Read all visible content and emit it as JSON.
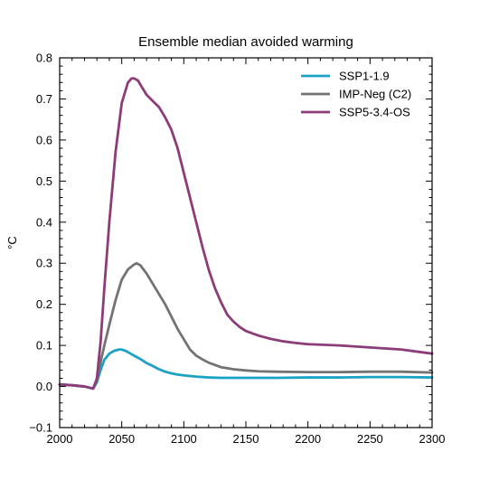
{
  "chart_data": {
    "type": "line",
    "title": "Ensemble median avoided warming",
    "xlabel": "",
    "ylabel": "°C",
    "xlim": [
      2000,
      2300
    ],
    "ylim": [
      -0.1,
      0.8
    ],
    "xticks": [
      "2000",
      "2050",
      "2100",
      "2150",
      "2200",
      "2250",
      "2300"
    ],
    "yticks": [
      "−0.1",
      "0.0",
      "0.1",
      "0.2",
      "0.3",
      "0.4",
      "0.5",
      "0.6",
      "0.7",
      "0.8"
    ],
    "grid": false,
    "legend_position": "top-right",
    "series": [
      {
        "name": "SSP1-1.9",
        "color": "#1ba3c6",
        "x": [
          2000,
          2010,
          2020,
          2027,
          2030,
          2033,
          2036,
          2040,
          2044,
          2048,
          2050,
          2053,
          2056,
          2060,
          2065,
          2070,
          2075,
          2080,
          2085,
          2090,
          2095,
          2100,
          2110,
          2120,
          2130,
          2150,
          2175,
          2200,
          2225,
          2250,
          2275,
          2300
        ],
        "y": [
          0.005,
          0.003,
          0.0,
          -0.005,
          0.01,
          0.04,
          0.065,
          0.08,
          0.087,
          0.09,
          0.09,
          0.087,
          0.082,
          0.075,
          0.067,
          0.057,
          0.05,
          0.042,
          0.036,
          0.032,
          0.029,
          0.027,
          0.024,
          0.022,
          0.021,
          0.021,
          0.021,
          0.022,
          0.022,
          0.023,
          0.023,
          0.022
        ]
      },
      {
        "name": "IMP-Neg (C2)",
        "color": "#737373",
        "x": [
          2000,
          2010,
          2020,
          2027,
          2030,
          2033,
          2036,
          2040,
          2045,
          2050,
          2055,
          2060,
          2062,
          2065,
          2070,
          2075,
          2080,
          2085,
          2090,
          2095,
          2100,
          2105,
          2110,
          2115,
          2120,
          2130,
          2140,
          2150,
          2160,
          2175,
          2200,
          2225,
          2250,
          2275,
          2300
        ],
        "y": [
          0.005,
          0.003,
          0.0,
          -0.005,
          0.015,
          0.06,
          0.1,
          0.15,
          0.21,
          0.26,
          0.285,
          0.297,
          0.3,
          0.295,
          0.275,
          0.25,
          0.225,
          0.2,
          0.17,
          0.14,
          0.115,
          0.09,
          0.075,
          0.066,
          0.058,
          0.047,
          0.042,
          0.039,
          0.037,
          0.036,
          0.035,
          0.035,
          0.036,
          0.036,
          0.034
        ]
      },
      {
        "name": "SSP5-3.4-OS",
        "color": "#8c3c78",
        "x": [
          2000,
          2010,
          2020,
          2027,
          2030,
          2033,
          2036,
          2040,
          2045,
          2050,
          2055,
          2058,
          2060,
          2063,
          2066,
          2070,
          2075,
          2080,
          2085,
          2090,
          2095,
          2100,
          2105,
          2110,
          2115,
          2120,
          2125,
          2130,
          2135,
          2140,
          2145,
          2150,
          2160,
          2170,
          2180,
          2190,
          2200,
          2225,
          2250,
          2275,
          2300
        ],
        "y": [
          0.005,
          0.003,
          0.0,
          -0.005,
          0.02,
          0.11,
          0.24,
          0.4,
          0.57,
          0.69,
          0.74,
          0.75,
          0.75,
          0.745,
          0.73,
          0.71,
          0.695,
          0.68,
          0.655,
          0.625,
          0.58,
          0.52,
          0.46,
          0.4,
          0.34,
          0.285,
          0.24,
          0.205,
          0.175,
          0.158,
          0.145,
          0.135,
          0.124,
          0.116,
          0.11,
          0.106,
          0.103,
          0.1,
          0.095,
          0.09,
          0.08
        ]
      }
    ]
  }
}
